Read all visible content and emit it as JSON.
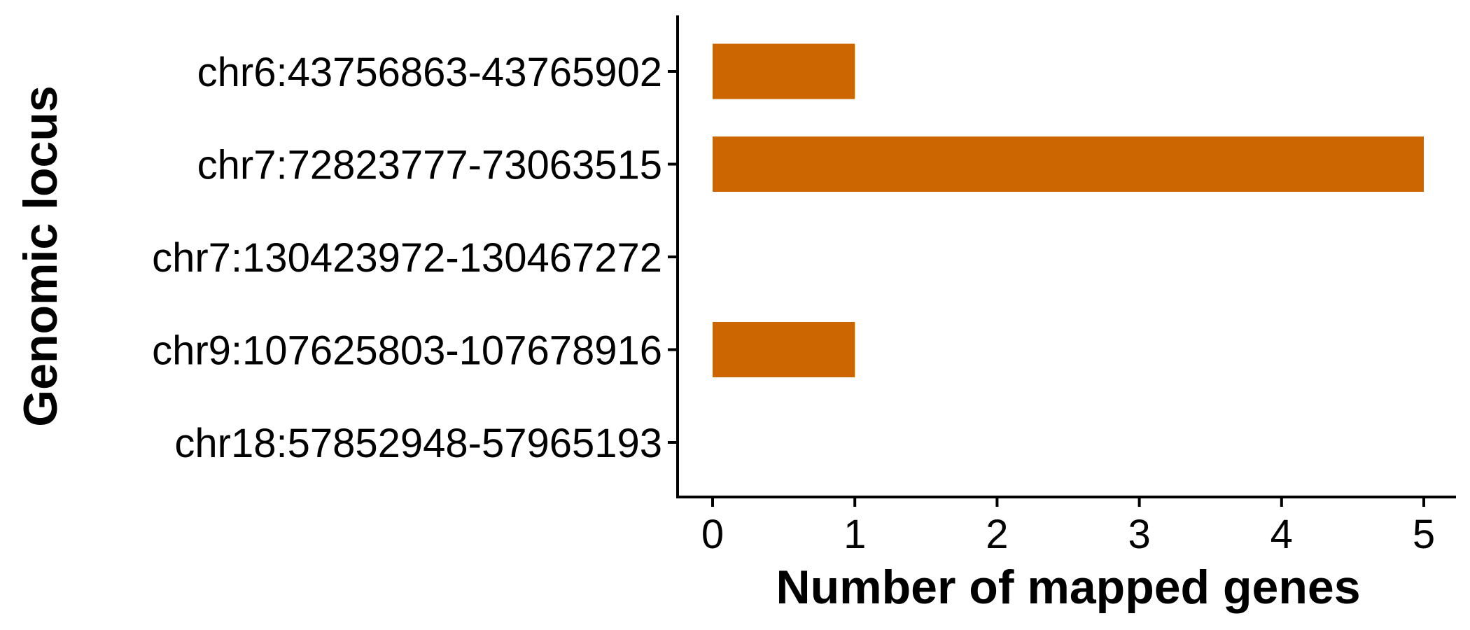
{
  "chart_data": {
    "type": "bar",
    "orientation": "horizontal",
    "categories": [
      "chr6:43756863-43765902",
      "chr7:72823777-73063515",
      "chr7:130423972-130467272",
      "chr9:107625803-107678916",
      "chr18:57852948-57965193"
    ],
    "values": [
      1,
      5,
      0,
      1,
      0
    ],
    "xlabel": "Number of mapped genes",
    "ylabel": "Genomic locus",
    "xlim": [
      0,
      5
    ],
    "xticks": [
      "0",
      "1",
      "2",
      "3",
      "4",
      "5"
    ],
    "bar_color": "#CC6600",
    "grid": false,
    "legend": "none"
  }
}
